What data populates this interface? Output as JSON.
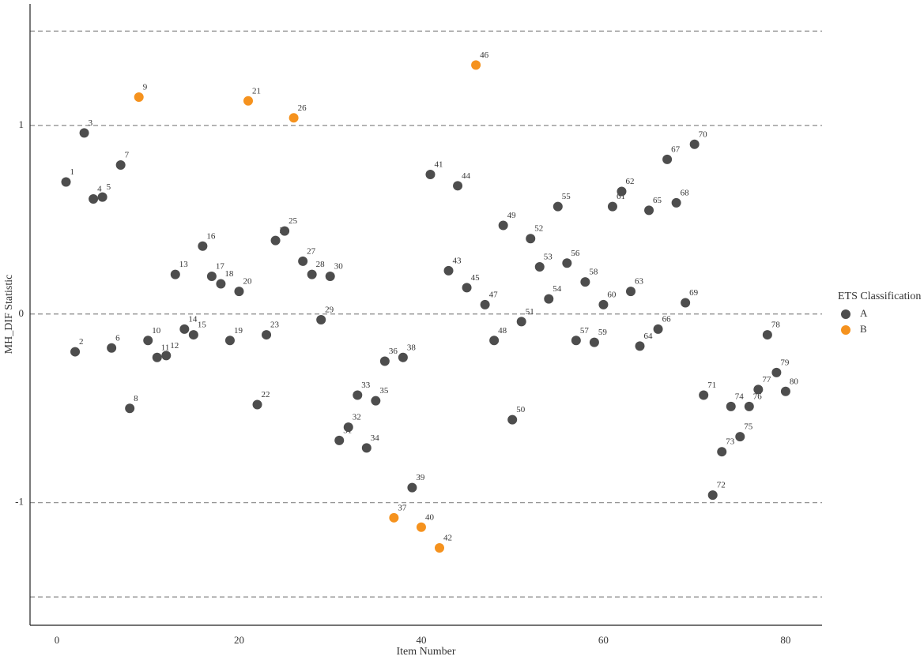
{
  "chart_data": {
    "type": "scatter",
    "x_label": "Item Number",
    "y_label": "MH_DIF Statistic",
    "legend_title": "ETS Classification",
    "legend_position": "right",
    "xlim": [
      -2.95,
      84
    ],
    "ylim": [
      -1.65,
      1.644
    ],
    "xticks": [
      0,
      20,
      40,
      60,
      80
    ],
    "yticks": [
      -1,
      0,
      1
    ],
    "hlines": [
      -1.5,
      -1,
      0,
      1,
      1.5
    ],
    "series": [
      {
        "name": "A",
        "color": "#4d4d4d",
        "x": [
          1,
          2,
          3,
          4,
          5,
          6,
          7,
          8,
          10,
          11,
          12,
          13,
          14,
          15,
          16,
          17,
          18,
          19,
          20,
          22,
          23,
          24,
          25,
          27,
          28,
          29,
          30,
          31,
          32,
          33,
          34,
          35,
          36,
          38,
          39,
          41,
          43,
          44,
          45,
          47,
          48,
          49,
          50,
          51,
          52,
          53,
          54,
          55,
          56,
          57,
          58,
          59,
          60,
          61,
          62,
          63,
          64,
          65,
          66,
          67,
          68,
          69,
          70,
          71,
          72,
          73,
          74,
          75,
          76,
          77,
          78,
          79,
          80
        ],
        "values": [
          0.7,
          -0.2,
          0.96,
          0.61,
          0.62,
          -0.18,
          0.79,
          -0.5,
          -0.14,
          -0.23,
          -0.22,
          0.21,
          -0.08,
          -0.11,
          0.36,
          0.2,
          0.16,
          -0.14,
          0.12,
          -0.48,
          -0.11,
          0.39,
          0.44,
          0.28,
          0.21,
          -0.03,
          0.2,
          -0.67,
          -0.6,
          -0.43,
          -0.71,
          -0.46,
          -0.25,
          -0.23,
          -0.92,
          0.74,
          0.23,
          0.68,
          0.14,
          0.05,
          -0.14,
          0.47,
          -0.56,
          -0.04,
          0.4,
          0.25,
          0.08,
          0.57,
          0.27,
          -0.14,
          0.17,
          -0.15,
          0.05,
          0.57,
          0.65,
          0.12,
          -0.17,
          0.55,
          -0.08,
          0.82,
          0.59,
          0.06,
          0.9,
          -0.43,
          -0.96,
          -0.73,
          -0.49,
          -0.65,
          -0.49,
          -0.4,
          -0.11,
          -0.31,
          -0.41
        ]
      },
      {
        "name": "B",
        "color": "#f5921e",
        "x": [
          9,
          21,
          26,
          37,
          40,
          42,
          46
        ],
        "values": [
          1.15,
          1.13,
          1.04,
          -1.08,
          -1.13,
          -1.24,
          1.32
        ]
      }
    ]
  }
}
